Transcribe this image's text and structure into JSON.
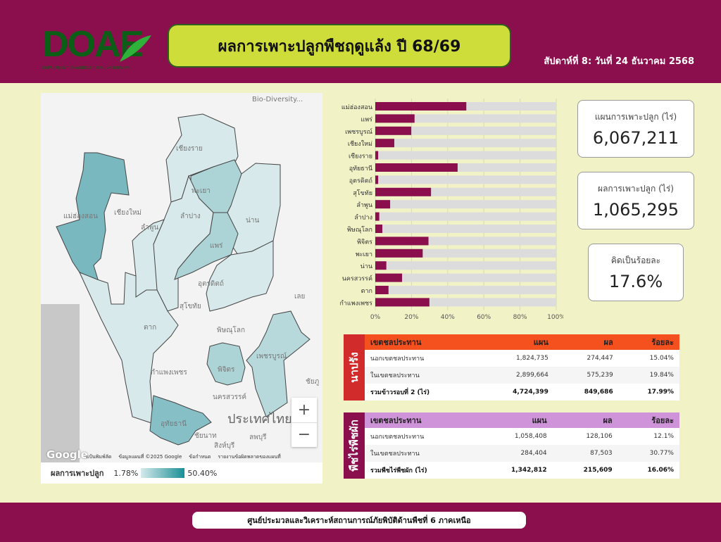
{
  "header": {
    "logo_text": "DOAE",
    "logo_subtitle": "DEPARTMENT OF AGRICULTURAL EXTENSION",
    "title": "ผลการเพาะปลูกพืชฤดูแล้ง ปี 68/69",
    "date": "สัปดาห์ที่ 8: วันที่ 24 ธันวาคม 2568"
  },
  "map": {
    "labels": [
      "Bio-Diversity...",
      "เชียงราย",
      "แม่ฮ่องสอน",
      "เชียงใหม่",
      "ลำพูน",
      "ลำปาง",
      "พะเยา",
      "น่าน",
      "แพร่",
      "อุตรดิตถ์",
      "สุโขทัย",
      "เลย",
      "ตาก",
      "พิษณุโลก",
      "กำแพงเพชร",
      "พิจิตร",
      "เพชรบูรณ์",
      "นครสวรรค์",
      "ชัยภู",
      "อุทัยธานี",
      "ชัยนาท",
      "สิงห์บุรี",
      "ลพบุรี",
      "ประเทศไทย"
    ],
    "zoom_in": "+",
    "zoom_out": "−",
    "google": "Google",
    "attribution": [
      "แป้นพิมพ์ลัด",
      "ข้อมูลแผนที่ ©2025 Google",
      "ข้อกำหนด",
      "รายงานข้อผิดพลาดของแผนที่"
    ],
    "legend": {
      "label": "ผลการเพาะปลูก",
      "min": "1.78%",
      "max": "50.40%",
      "color_low": "#d5eaec",
      "color_high": "#1a8f96"
    }
  },
  "chart_data": {
    "type": "bar",
    "orientation": "horizontal",
    "stacked_percent": true,
    "categories": [
      "แม่ฮ่องสอน",
      "แพร่",
      "เพชรบูรณ์",
      "เชียงใหม่",
      "เชียงราย",
      "อุทัยธานี",
      "อุตรดิตถ์",
      "สุโขทัย",
      "ลำพูน",
      "ลำปาง",
      "พิษณุโลก",
      "พิจิตร",
      "พะเยา",
      "น่าน",
      "นครสวรรค์",
      "ตาก",
      "กำแพงเพชร"
    ],
    "values": [
      50.3,
      21.7,
      19.9,
      10.5,
      1.6,
      45.5,
      1.6,
      30.8,
      8.2,
      2.2,
      3.9,
      29.4,
      26.2,
      6.1,
      14.8,
      7.3,
      29.9
    ],
    "xlim": [
      0,
      100
    ],
    "xticks": [
      "0%",
      "20%",
      "40%",
      "60%",
      "80%",
      "100%"
    ],
    "grid": true,
    "bar_color": "#8a0f4c",
    "remainder_color": "#dcdcdc"
  },
  "kpis": [
    {
      "label": "แผนการเพาะปลูก (ไร่)",
      "value": "6,067,211"
    },
    {
      "label": "ผลการเพาะปลูก (ไร่)",
      "value": "1,065,295"
    },
    {
      "label": "คิดเป็นร้อยละ",
      "value": "17.6%"
    }
  ],
  "tables": [
    {
      "side": "นาปรัง",
      "color": "#d22b2b",
      "header_color": "#f4511e",
      "headers": [
        "เขตชลประทาน",
        "แผน",
        "ผล",
        "ร้อยละ"
      ],
      "rows": [
        [
          "นอกเขตชลประทาน",
          "1,824,735",
          "274,447",
          "15.04%"
        ],
        [
          "ในเขตชลประทาน",
          "2,899,664",
          "575,239",
          "19.84%"
        ],
        [
          "รวมข้าวรอบที่ 2 (ไร่)",
          "4,724,399",
          "849,686",
          "17.99%"
        ]
      ]
    },
    {
      "side": "พืชไร่พืชผัก",
      "color": "#8a0f4c",
      "header_color": "#ce93d8",
      "headers": [
        "เขตชลประทาน",
        "แผน",
        "ผล",
        "ร้อยละ"
      ],
      "rows": [
        [
          "นอกเขตชลประทาน",
          "1,058,408",
          "128,106",
          "12.1%"
        ],
        [
          "ในเขตชลประทาน",
          "284,404",
          "87,503",
          "30.77%"
        ],
        [
          "รวมพืชไร่พืชผัก (ไร่)",
          "1,342,812",
          "215,609",
          "16.06%"
        ]
      ]
    }
  ],
  "footer": "ศูนย์ประมวลและวิเคราะห์สถานการณ์ภัยพิบัติด้านพืชที่ 6 ภาคเหนือ"
}
